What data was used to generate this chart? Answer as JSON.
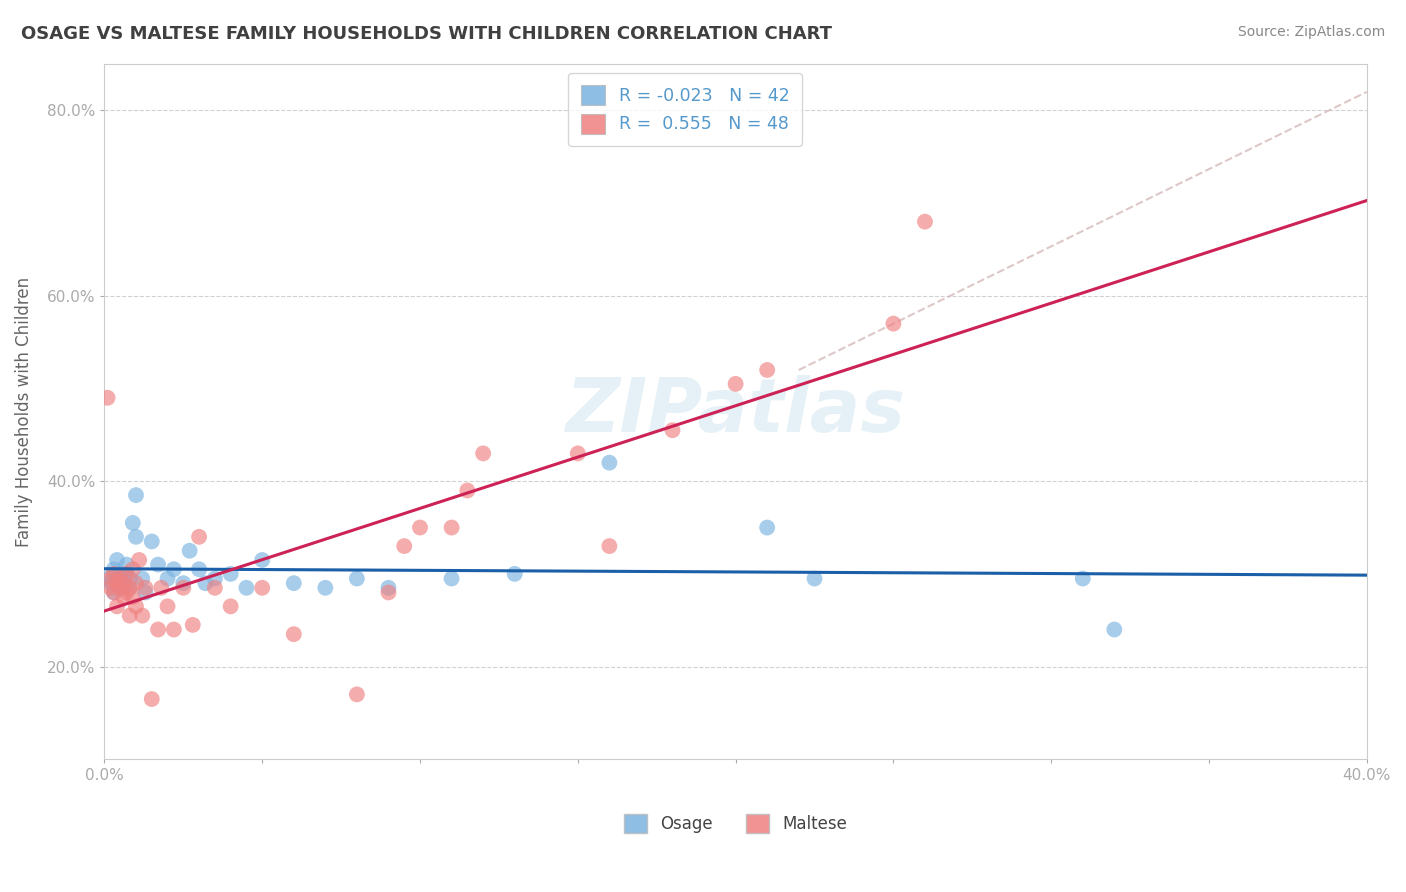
{
  "title": "OSAGE VS MALTESE FAMILY HOUSEHOLDS WITH CHILDREN CORRELATION CHART",
  "source": "Source: ZipAtlas.com",
  "ylabel": "Family Households with Children",
  "watermark": "ZIPatlas",
  "xlim": [
    0.0,
    0.4
  ],
  "ylim": [
    0.1,
    0.85
  ],
  "ytick_vals": [
    0.2,
    0.4,
    0.6,
    0.8
  ],
  "ytick_labels": [
    "20.0%",
    "40.0%",
    "60.0%",
    "80.0%"
  ],
  "xtick_vals": [
    0.0,
    0.05,
    0.1,
    0.15,
    0.2,
    0.25,
    0.3,
    0.35,
    0.4
  ],
  "xtick_labels": [
    "0.0%",
    "",
    "",
    "",
    "",
    "",
    "",
    "",
    "40.0%"
  ],
  "legend_label_osage": "R = -0.023   N = 42",
  "legend_label_maltese": "R =  0.555   N = 48",
  "osage_color": "#7ab3e0",
  "maltese_color": "#f08080",
  "trendline_osage_color": "#1a5fa8",
  "trendline_maltese_color": "#cc2255",
  "trendline_dashed_color": "#d0b0b0",
  "background_color": "#ffffff",
  "grid_color": "#cccccc",
  "title_color": "#404040",
  "osage_points": [
    [
      0.001,
      0.295
    ],
    [
      0.002,
      0.29
    ],
    [
      0.003,
      0.305
    ],
    [
      0.003,
      0.28
    ],
    [
      0.004,
      0.295
    ],
    [
      0.004,
      0.315
    ],
    [
      0.005,
      0.29
    ],
    [
      0.005,
      0.3
    ],
    [
      0.006,
      0.285
    ],
    [
      0.006,
      0.295
    ],
    [
      0.007,
      0.31
    ],
    [
      0.007,
      0.3
    ],
    [
      0.008,
      0.295
    ],
    [
      0.008,
      0.285
    ],
    [
      0.009,
      0.355
    ],
    [
      0.01,
      0.385
    ],
    [
      0.01,
      0.34
    ],
    [
      0.012,
      0.295
    ],
    [
      0.013,
      0.28
    ],
    [
      0.015,
      0.335
    ],
    [
      0.017,
      0.31
    ],
    [
      0.02,
      0.295
    ],
    [
      0.022,
      0.305
    ],
    [
      0.025,
      0.29
    ],
    [
      0.027,
      0.325
    ],
    [
      0.03,
      0.305
    ],
    [
      0.032,
      0.29
    ],
    [
      0.035,
      0.295
    ],
    [
      0.04,
      0.3
    ],
    [
      0.045,
      0.285
    ],
    [
      0.05,
      0.315
    ],
    [
      0.06,
      0.29
    ],
    [
      0.07,
      0.285
    ],
    [
      0.08,
      0.295
    ],
    [
      0.09,
      0.285
    ],
    [
      0.11,
      0.295
    ],
    [
      0.13,
      0.3
    ],
    [
      0.16,
      0.42
    ],
    [
      0.21,
      0.35
    ],
    [
      0.225,
      0.295
    ],
    [
      0.31,
      0.295
    ],
    [
      0.32,
      0.24
    ]
  ],
  "maltese_points": [
    [
      0.001,
      0.49
    ],
    [
      0.002,
      0.285
    ],
    [
      0.002,
      0.295
    ],
    [
      0.003,
      0.28
    ],
    [
      0.003,
      0.3
    ],
    [
      0.004,
      0.29
    ],
    [
      0.004,
      0.265
    ],
    [
      0.005,
      0.285
    ],
    [
      0.005,
      0.295
    ],
    [
      0.006,
      0.275
    ],
    [
      0.006,
      0.29
    ],
    [
      0.007,
      0.3
    ],
    [
      0.007,
      0.28
    ],
    [
      0.008,
      0.285
    ],
    [
      0.008,
      0.255
    ],
    [
      0.009,
      0.305
    ],
    [
      0.009,
      0.275
    ],
    [
      0.01,
      0.29
    ],
    [
      0.01,
      0.265
    ],
    [
      0.011,
      0.315
    ],
    [
      0.012,
      0.255
    ],
    [
      0.013,
      0.285
    ],
    [
      0.015,
      0.165
    ],
    [
      0.017,
      0.24
    ],
    [
      0.018,
      0.285
    ],
    [
      0.02,
      0.265
    ],
    [
      0.022,
      0.24
    ],
    [
      0.025,
      0.285
    ],
    [
      0.028,
      0.245
    ],
    [
      0.03,
      0.34
    ],
    [
      0.035,
      0.285
    ],
    [
      0.04,
      0.265
    ],
    [
      0.05,
      0.285
    ],
    [
      0.06,
      0.235
    ],
    [
      0.08,
      0.17
    ],
    [
      0.09,
      0.28
    ],
    [
      0.095,
      0.33
    ],
    [
      0.1,
      0.35
    ],
    [
      0.11,
      0.35
    ],
    [
      0.115,
      0.39
    ],
    [
      0.12,
      0.43
    ],
    [
      0.15,
      0.43
    ],
    [
      0.16,
      0.33
    ],
    [
      0.18,
      0.455
    ],
    [
      0.2,
      0.505
    ],
    [
      0.21,
      0.52
    ],
    [
      0.25,
      0.57
    ],
    [
      0.26,
      0.68
    ]
  ]
}
